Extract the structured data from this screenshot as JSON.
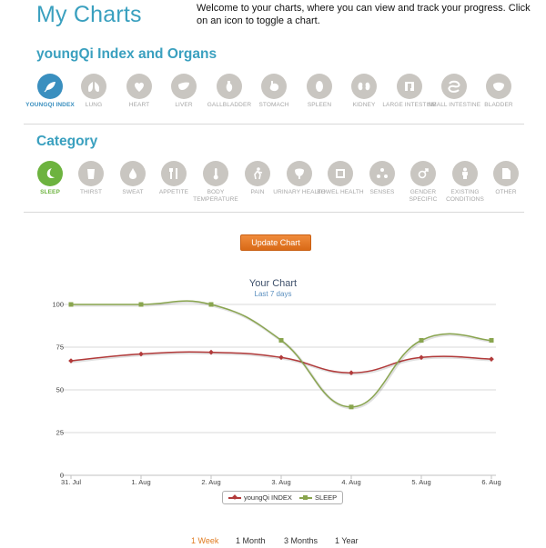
{
  "page": {
    "title": "My Charts",
    "intro": "Welcome to your charts, where you can view and track your progress. Click on an icon to toggle a chart."
  },
  "organs": {
    "title": "youngQi Index and Organs",
    "items": [
      {
        "label": "youngQi INDEX",
        "icon": "leaf-icon",
        "active": true
      },
      {
        "label": "LUNG",
        "icon": "lung-icon",
        "active": false
      },
      {
        "label": "HEART",
        "icon": "heart-icon",
        "active": false
      },
      {
        "label": "LIVER",
        "icon": "liver-icon",
        "active": false
      },
      {
        "label": "GALLBLADDER",
        "icon": "gallbladder-icon",
        "active": false
      },
      {
        "label": "STOMACH",
        "icon": "stomach-icon",
        "active": false
      },
      {
        "label": "SPLEEN",
        "icon": "spleen-icon",
        "active": false
      },
      {
        "label": "KIDNEY",
        "icon": "kidney-icon",
        "active": false
      },
      {
        "label": "LARGE INTESTINE",
        "icon": "large-intestine-icon",
        "active": false
      },
      {
        "label": "SMALL INTESTINE",
        "icon": "small-intestine-icon",
        "active": false
      },
      {
        "label": "BLADDER",
        "icon": "bladder-icon",
        "active": false
      }
    ]
  },
  "category": {
    "title": "Category",
    "items": [
      {
        "label": "SLEEP",
        "icon": "moon-icon",
        "active": true
      },
      {
        "label": "THIRST",
        "icon": "glass-icon",
        "active": false
      },
      {
        "label": "SWEAT",
        "icon": "drop-icon",
        "active": false
      },
      {
        "label": "APPETITE",
        "icon": "utensils-icon",
        "active": false
      },
      {
        "label": "BODY TEMPERATURE",
        "icon": "thermometer-icon",
        "active": false
      },
      {
        "label": "PAIN",
        "icon": "pain-figure-icon",
        "active": false
      },
      {
        "label": "URINARY HEALTH",
        "icon": "urinary-icon",
        "active": false
      },
      {
        "label": "BOWEL HEALTH",
        "icon": "bowel-icon",
        "active": false
      },
      {
        "label": "SENSES",
        "icon": "senses-icon",
        "active": false
      },
      {
        "label": "GENDER SPECIFIC",
        "icon": "gender-icon",
        "active": false
      },
      {
        "label": "EXISTING CONDITIONS",
        "icon": "person-icon",
        "active": false
      },
      {
        "label": "OTHER",
        "icon": "document-icon",
        "active": false
      }
    ]
  },
  "actions": {
    "update_label": "Update Chart"
  },
  "ranges": [
    {
      "label": "1 Week",
      "active": true
    },
    {
      "label": "1 Month",
      "active": false
    },
    {
      "label": "3 Months",
      "active": false
    },
    {
      "label": "1 Year",
      "active": false
    }
  ],
  "colors": {
    "accent": "#3aa0bf",
    "youngqi_series": "#b23a3a",
    "sleep_series": "#89a54e",
    "button": "#e07b20"
  },
  "chart_data": {
    "type": "line",
    "title": "Your Chart",
    "subtitle": "Last 7 days",
    "categories": [
      "31. Jul",
      "1. Aug",
      "2. Aug",
      "3. Aug",
      "4. Aug",
      "5. Aug",
      "6. Aug"
    ],
    "yticks": [
      0,
      25,
      50,
      75,
      100
    ],
    "ylim": [
      0,
      100
    ],
    "grid": true,
    "legend": "bottom-center",
    "series": [
      {
        "name": "youngQi INDEX",
        "marker": "diamond",
        "color": "#b23a3a",
        "values": [
          67,
          71,
          72,
          69,
          60,
          69,
          68
        ]
      },
      {
        "name": "SLEEP",
        "marker": "square",
        "color": "#89a54e",
        "values": [
          100,
          100,
          100,
          79,
          40,
          79,
          79
        ]
      }
    ]
  }
}
